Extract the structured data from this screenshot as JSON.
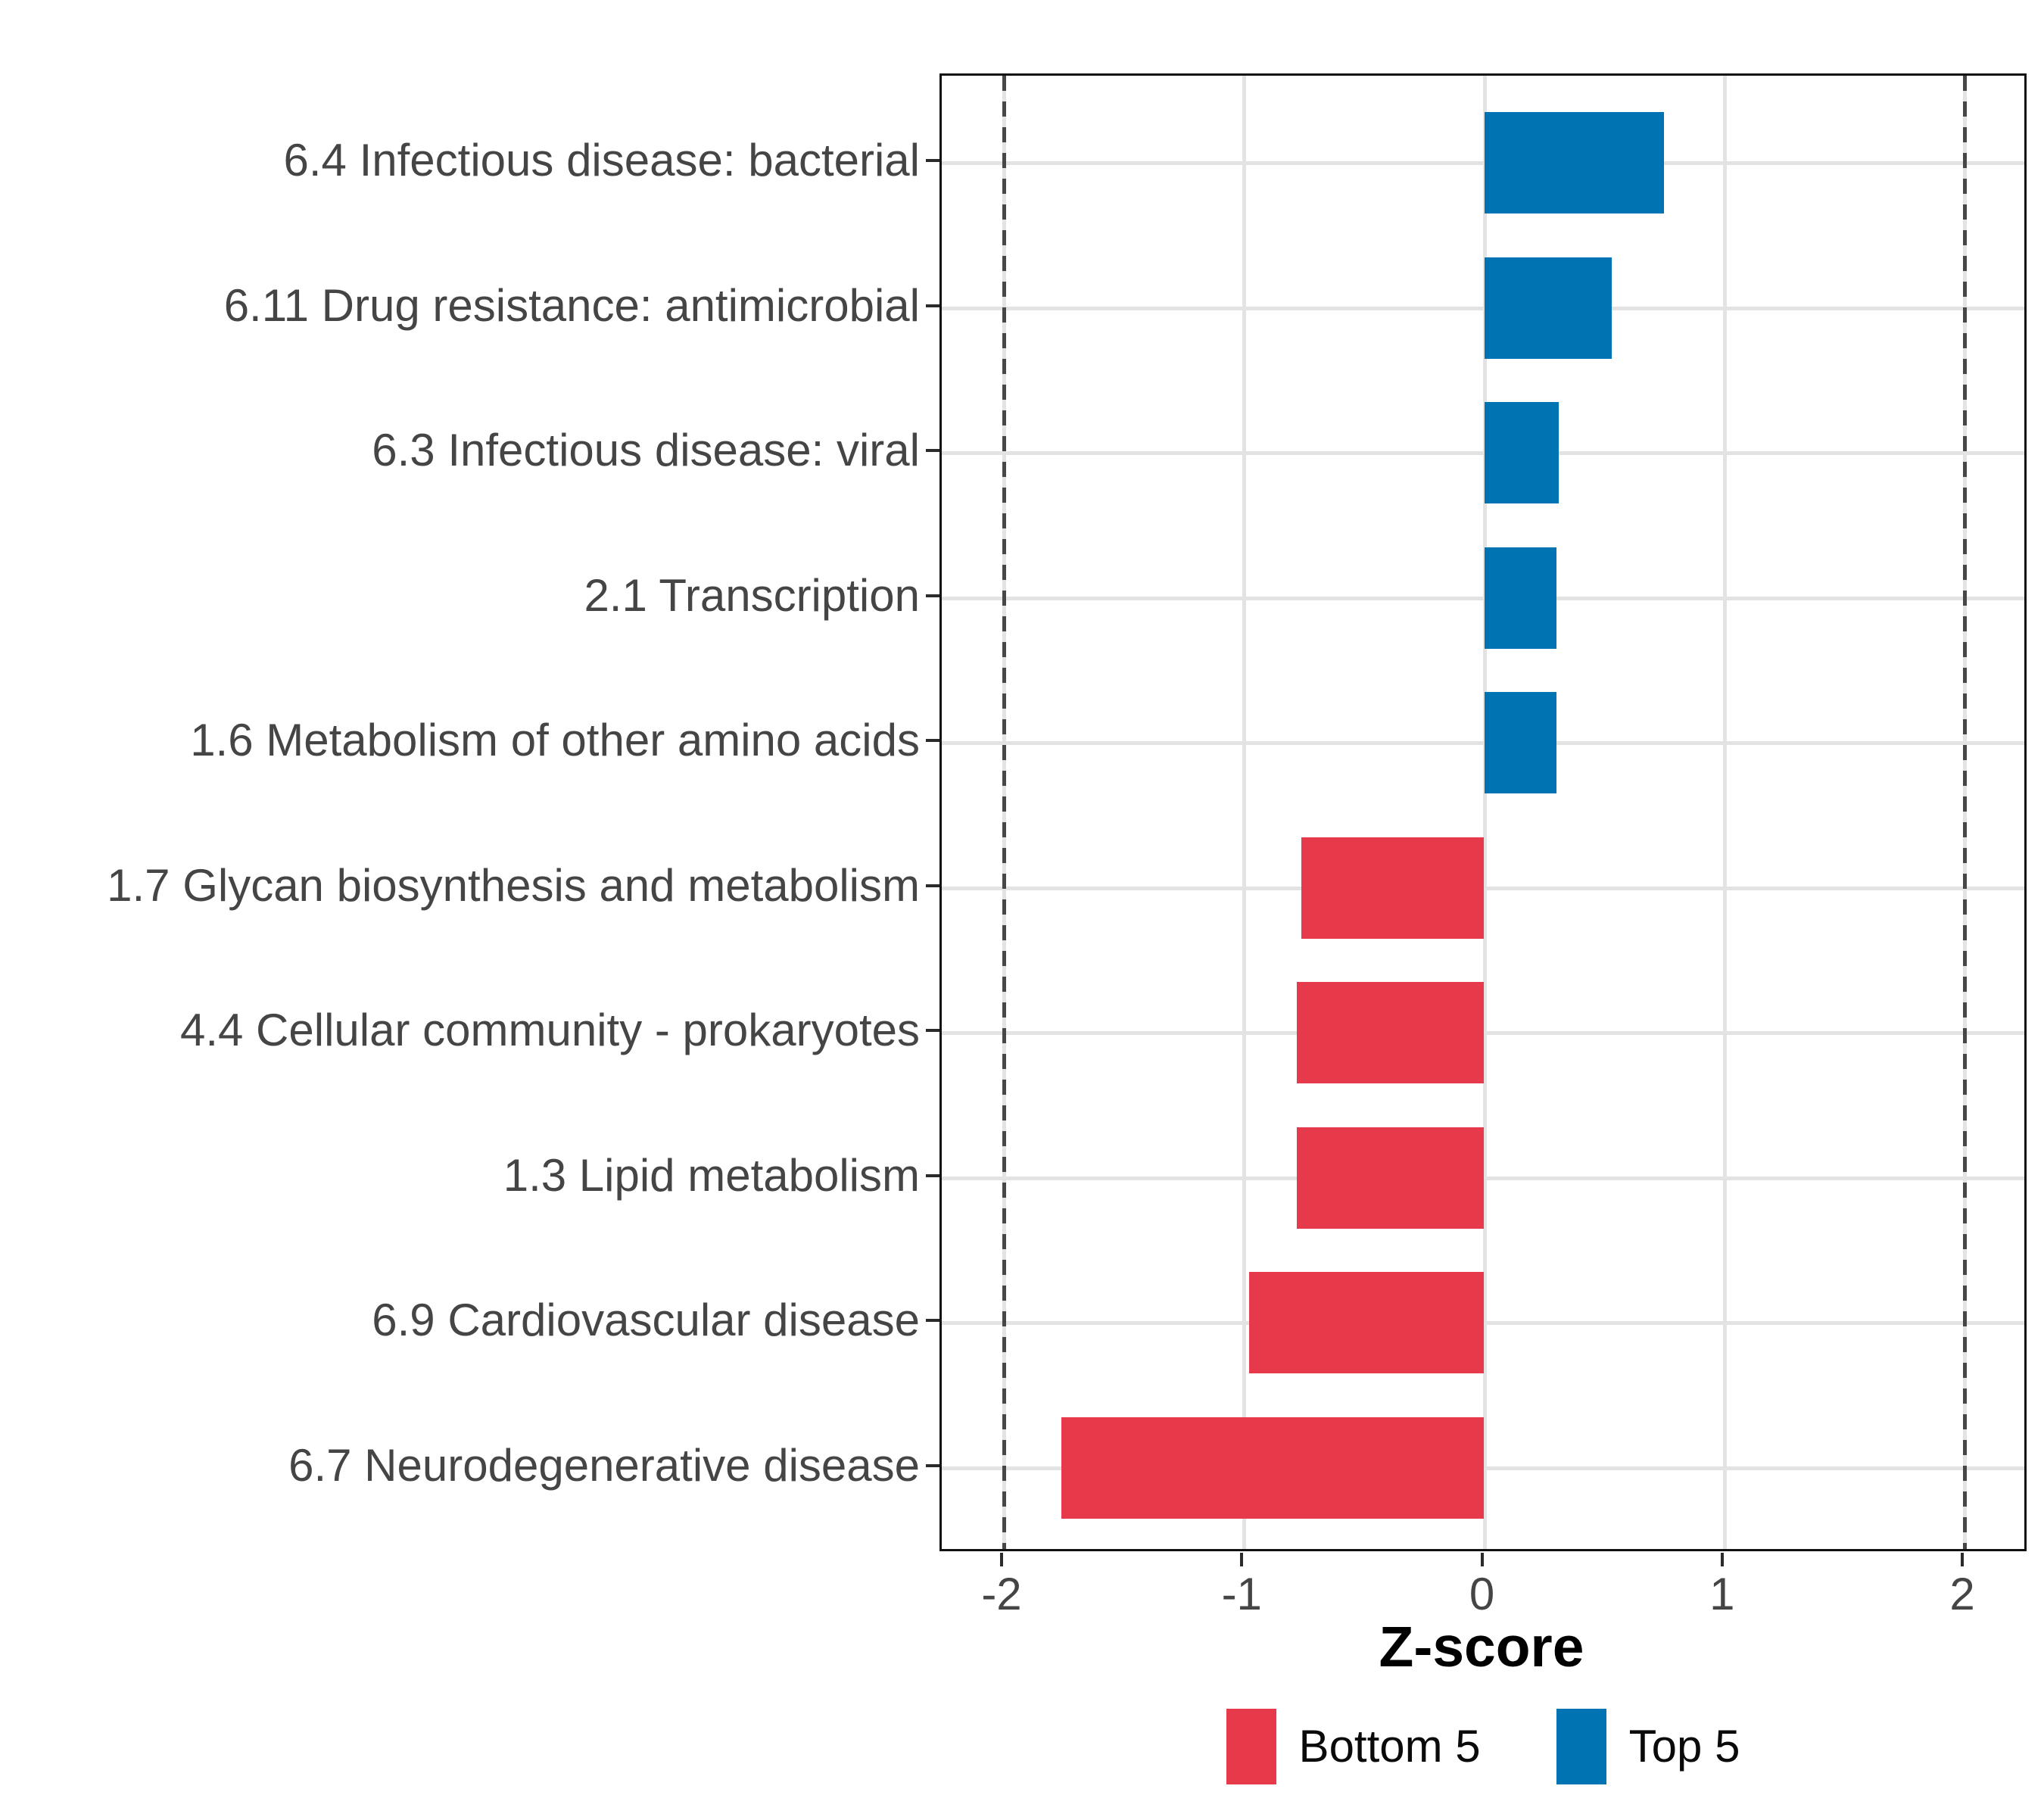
{
  "chart_data": {
    "type": "bar",
    "orientation": "horizontal",
    "title": "",
    "xlabel": "Z-score",
    "ylabel": "",
    "xlim": [
      -2.26,
      2.27
    ],
    "grid": "major-only",
    "legend_position": "bottom",
    "x_ticks": [
      {
        "value": -2,
        "label": "-2"
      },
      {
        "value": -1,
        "label": "-1"
      },
      {
        "value": 0,
        "label": "0"
      },
      {
        "value": 1,
        "label": "1"
      },
      {
        "value": 2,
        "label": "2"
      }
    ],
    "reference_lines": {
      "values": [
        -2,
        2
      ],
      "style": "dashed",
      "color": "#474747"
    },
    "bars": [
      {
        "label": "6.4 Infectious disease: bacterial",
        "value": 0.75,
        "group": "Top 5"
      },
      {
        "label": "6.11 Drug resistance: antimicrobial",
        "value": 0.53,
        "group": "Top 5"
      },
      {
        "label": "6.3 Infectious disease: viral",
        "value": 0.31,
        "group": "Top 5"
      },
      {
        "label": "2.1 Transcription",
        "value": 0.3,
        "group": "Top 5"
      },
      {
        "label": "1.6 Metabolism of other amino acids",
        "value": 0.3,
        "group": "Top 5"
      },
      {
        "label": "1.7 Glycan biosynthesis and metabolism",
        "value": -0.76,
        "group": "Bottom 5"
      },
      {
        "label": "4.4 Cellular community - prokaryotes",
        "value": -0.78,
        "group": "Bottom 5"
      },
      {
        "label": "1.3 Lipid metabolism",
        "value": -0.78,
        "group": "Bottom 5"
      },
      {
        "label": "6.9 Cardiovascular disease",
        "value": -0.98,
        "group": "Bottom 5"
      },
      {
        "label": "6.7 Neurodegenerative disease",
        "value": -1.76,
        "group": "Bottom 5"
      }
    ],
    "legend": [
      {
        "label": "Bottom 5",
        "color": "#E6394A"
      },
      {
        "label": "Top 5",
        "color": "#0074B2"
      }
    ],
    "colors": {
      "grid": "#E3E3E3",
      "panel_border": "#111111",
      "axis_text": "#454545",
      "axis_title": "#000000",
      "tick_mark": "#2b2b2b"
    }
  }
}
